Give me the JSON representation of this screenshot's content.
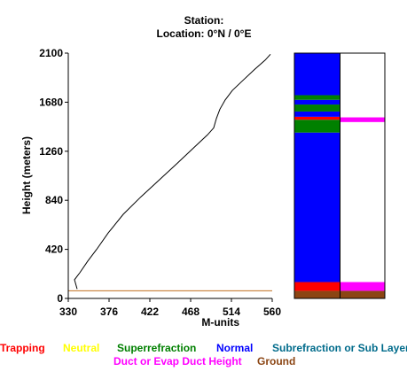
{
  "header": {
    "station": "Station:",
    "location": "Location:   0°N /   0°E"
  },
  "chart_data": {
    "type": "line",
    "title": "",
    "xlabel": "M-units",
    "ylabel": "Height (meters)",
    "xlim": [
      330,
      560
    ],
    "ylim": [
      0,
      2100
    ],
    "xticks": [
      "330",
      "376",
      "422",
      "468",
      "514",
      "560"
    ],
    "yticks": [
      "0",
      "420",
      "840",
      "1260",
      "1680",
      "2100"
    ],
    "ground_height": 65,
    "series": [
      {
        "color": "#000000",
        "x": [
          340,
          337,
          343,
          352,
          362,
          375,
          392,
          412,
          432,
          452,
          470,
          487,
          494,
          497,
          501,
          507,
          515,
          526,
          540,
          552,
          558
        ],
        "y": [
          80,
          160,
          220,
          320,
          420,
          560,
          720,
          870,
          1010,
          1150,
          1280,
          1400,
          1460,
          1540,
          1620,
          1700,
          1780,
          1860,
          1960,
          2040,
          2090
        ]
      }
    ],
    "column_left": [
      {
        "from": 0,
        "to": 65,
        "layer": "Ground",
        "color": "#8b4513"
      },
      {
        "from": 65,
        "to": 140,
        "layer": "Trapping",
        "color": "#ff0000"
      },
      {
        "from": 140,
        "to": 1420,
        "layer": "Normal",
        "color": "#0000ff"
      },
      {
        "from": 1420,
        "to": 1530,
        "layer": "Superrefraction",
        "color": "#008000"
      },
      {
        "from": 1530,
        "to": 1555,
        "layer": "Trapping",
        "color": "#ff0000"
      },
      {
        "from": 1555,
        "to": 1600,
        "layer": "Normal",
        "color": "#0000ff"
      },
      {
        "from": 1600,
        "to": 1660,
        "layer": "Superrefraction",
        "color": "#008000"
      },
      {
        "from": 1660,
        "to": 1700,
        "layer": "Normal",
        "color": "#0000ff"
      },
      {
        "from": 1700,
        "to": 1740,
        "layer": "Superrefraction",
        "color": "#008000"
      },
      {
        "from": 1740,
        "to": 2100,
        "layer": "Normal",
        "color": "#0000ff"
      }
    ],
    "column_right": [
      {
        "from": 0,
        "to": 65,
        "layer": "Ground",
        "color": "#8b4513"
      },
      {
        "from": 65,
        "to": 140,
        "layer": "Duct or Evap Duct Height",
        "color": "#ff00ff"
      },
      {
        "from": 1510,
        "to": 1550,
        "layer": "Duct or Evap Duct Height",
        "color": "#ff00ff"
      }
    ]
  },
  "legend": {
    "row1": [
      {
        "label": "Trapping",
        "color": "#ff0000"
      },
      {
        "label": "Neutral",
        "color": "#ffff00"
      },
      {
        "label": "Superrefraction",
        "color": "#008000"
      },
      {
        "label": "Normal",
        "color": "#0000ff"
      },
      {
        "label": "Subrefraction or Sub Layer",
        "color": "#006b8b"
      }
    ],
    "row2": [
      {
        "label": "Duct or Evap Duct Height",
        "color": "#ff00ff"
      },
      {
        "label": "Ground",
        "color": "#8b4513"
      }
    ]
  }
}
